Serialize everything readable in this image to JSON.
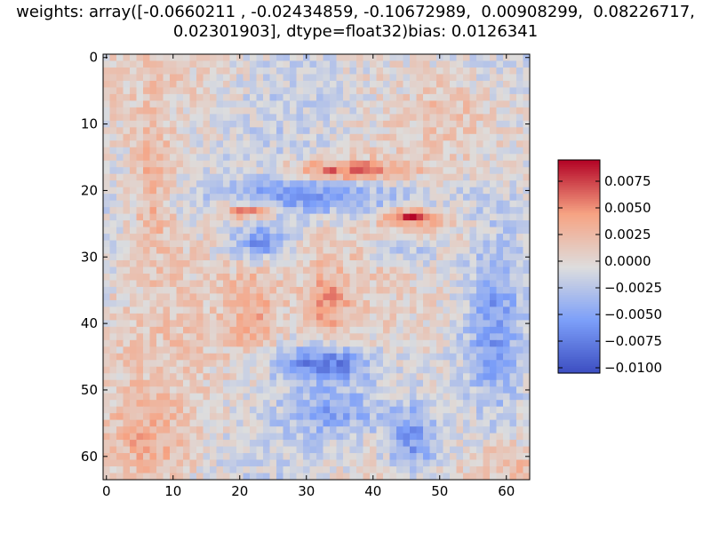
{
  "title_lines": [
    "weights: array([-0.0660211 , -0.02434859, -0.10672989,  0.00908299,  0.08226717,",
    "0.02301903], dtype=float32)bias: 0.0126341"
  ],
  "chart_data": {
    "type": "heatmap",
    "title": "weights: array([-0.0660211 , -0.02434859, -0.10672989,  0.00908299,  0.08226717, 0.02301903], dtype=float32)bias: 0.0126341",
    "rows": 64,
    "cols": 64,
    "colormap": "coolwarm",
    "xlim": [
      -0.5,
      63.5
    ],
    "ylim": [
      63.5,
      -0.5
    ],
    "x_ticks": [
      0,
      10,
      20,
      30,
      40,
      50,
      60
    ],
    "y_ticks": [
      0,
      10,
      20,
      30,
      40,
      50,
      60
    ],
    "colorbar": {
      "vmin": -0.0105,
      "vmax": 0.0095,
      "ticks": [
        0.0075,
        0.005,
        0.0025,
        0.0,
        -0.0025,
        -0.005,
        -0.0075,
        -0.01
      ],
      "tick_labels": [
        "0.0075",
        "0.0050",
        "0.0025",
        "0.0000",
        "−0.0025",
        "−0.0050",
        "−0.0075",
        "−0.0100"
      ]
    },
    "regions": [
      {
        "name": "brow-ridge",
        "cx": 35,
        "cy": 17,
        "rx": 9,
        "ry": 1.5,
        "value": 0.007
      },
      {
        "name": "left-eye",
        "cx": 21,
        "cy": 23,
        "rx": 4,
        "ry": 1.2,
        "value": 0.008
      },
      {
        "name": "right-eye",
        "cx": 46,
        "cy": 24,
        "rx": 4,
        "ry": 1.2,
        "value": 0.008
      },
      {
        "name": "forehead-band",
        "cx": 34,
        "cy": 21,
        "rx": 20,
        "ry": 3,
        "value": -0.005
      },
      {
        "name": "under-left-eye",
        "cx": 23,
        "cy": 28,
        "rx": 4,
        "ry": 2.5,
        "value": -0.006
      },
      {
        "name": "under-right-eye",
        "cx": 45,
        "cy": 29,
        "rx": 5,
        "ry": 2.5,
        "value": -0.004
      },
      {
        "name": "nose",
        "cx": 33,
        "cy": 37,
        "rx": 4,
        "ry": 6,
        "value": 0.004
      },
      {
        "name": "left-cheek",
        "cx": 22,
        "cy": 38,
        "rx": 4,
        "ry": 7,
        "value": 0.0035
      },
      {
        "name": "mouth",
        "cx": 33,
        "cy": 46,
        "rx": 7,
        "ry": 2.5,
        "value": -0.0075
      },
      {
        "name": "chin",
        "cx": 35,
        "cy": 53,
        "rx": 7,
        "ry": 4,
        "value": -0.004
      },
      {
        "name": "left-edge",
        "cx": 7,
        "cy": 20,
        "rx": 3,
        "ry": 10,
        "value": 0.0035
      },
      {
        "name": "right-edge",
        "cx": 58,
        "cy": 40,
        "rx": 4,
        "ry": 14,
        "value": -0.004
      },
      {
        "name": "lower-left",
        "cx": 6,
        "cy": 58,
        "rx": 6,
        "ry": 6,
        "value": 0.003
      },
      {
        "name": "lower-right-diag",
        "cx": 46,
        "cy": 58,
        "rx": 4,
        "ry": 6,
        "value": -0.006
      },
      {
        "name": "bottom-right",
        "cx": 60,
        "cy": 61,
        "rx": 4,
        "ry": 3,
        "value": 0.003
      },
      {
        "name": "top-right",
        "cx": 52,
        "cy": 8,
        "rx": 6,
        "ry": 5,
        "value": 0.002
      }
    ]
  }
}
